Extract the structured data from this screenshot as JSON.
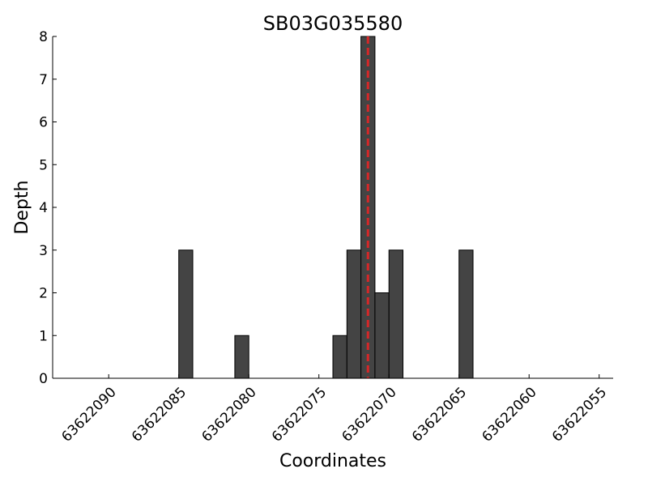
{
  "chart_data": {
    "type": "histogram",
    "title": "SB03G035580",
    "x_label": "Coordinates",
    "y_label": "Depth",
    "bins": [
      63622085,
      63622084,
      63622083,
      63622082,
      63622081,
      63622080,
      63622079,
      63622078,
      63622077,
      63622076,
      63622075,
      63622074,
      63622073,
      63622072,
      63622071,
      63622070,
      63622069,
      63622068,
      63622067,
      63622066,
      63622065,
      63622064
    ],
    "values": [
      3,
      0,
      0,
      0,
      1,
      0,
      0,
      0,
      0,
      0,
      0,
      1,
      3,
      8,
      2,
      3,
      0,
      0,
      0,
      0,
      3
    ],
    "color": "#444444",
    "edge_color": "#000000",
    "xlim": [
      63622094,
      63622054
    ],
    "xticks": [
      63622090,
      63622085,
      63622080,
      63622075,
      63622070,
      63622065,
      63622060,
      63622055
    ],
    "ylim": [
      0,
      8
    ],
    "yticks": [
      0,
      1,
      2,
      3,
      4,
      5,
      6,
      7,
      8
    ],
    "vline": {
      "value": 63622071.5,
      "color": "#d62728",
      "style": "dashed"
    }
  }
}
